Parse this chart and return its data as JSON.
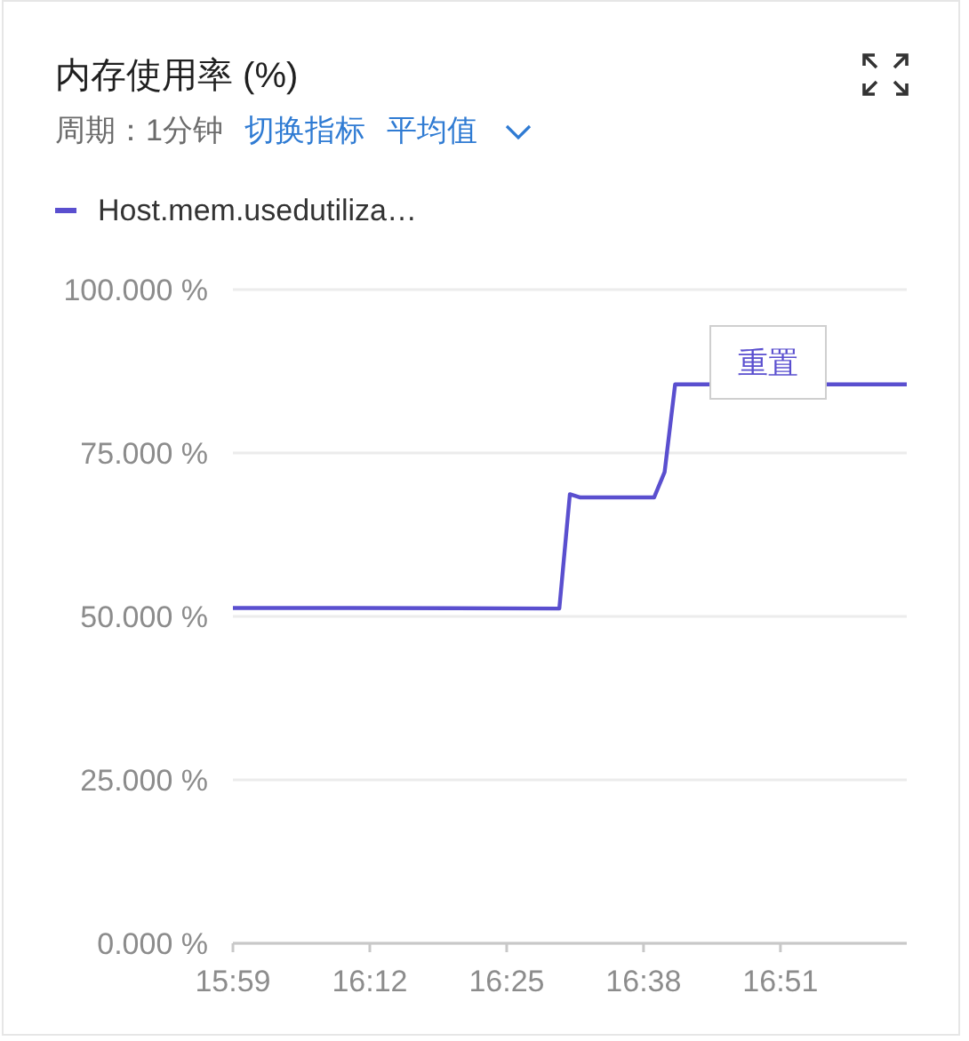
{
  "chart_data": {
    "type": "line",
    "title": "内存使用率 (%)",
    "subtitle": "周期：1分钟",
    "annotations": [
      "切换指标",
      "平均值",
      "重置"
    ],
    "x": [
      15.9833,
      16.1667,
      16.5,
      16.5167,
      16.5333,
      16.65,
      16.6667,
      16.6833,
      17.05
    ],
    "series": [
      {
        "name": "Host.mem.usedutiliza…",
        "color": "#5a4fcf",
        "values": [
          51.3,
          51.3,
          51.2,
          68.7,
          68.2,
          68.2,
          72.1,
          85.5,
          85.5
        ]
      }
    ],
    "xlim": [
      15.9833,
      17.05
    ],
    "xticks": [
      {
        "value": 15.9833,
        "label": "15:59"
      },
      {
        "value": 16.2,
        "label": "16:12"
      },
      {
        "value": 16.4167,
        "label": "16:25"
      },
      {
        "value": 16.6333,
        "label": "16:38"
      },
      {
        "value": 16.85,
        "label": "16:51"
      }
    ],
    "ylim": [
      0,
      100
    ],
    "yticks": [
      {
        "value": 0,
        "label": "0.000 %"
      },
      {
        "value": 25,
        "label": "25.000 %"
      },
      {
        "value": 50,
        "label": "50.000 %"
      },
      {
        "value": 75,
        "label": "75.000 %"
      },
      {
        "value": 100,
        "label": "100.000 %"
      }
    ],
    "grid": "y",
    "legend": "top left",
    "marker": "none",
    "line_style": "solid"
  }
}
